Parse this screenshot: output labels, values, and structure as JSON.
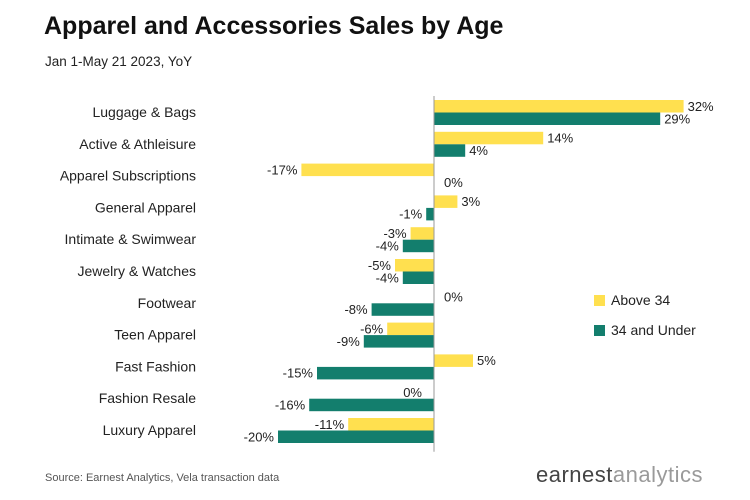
{
  "header": {
    "title": "Apparel and Accessories Sales by Age",
    "subtitle": "Jan 1-May 21 2023, YoY"
  },
  "footer": {
    "source": "Source: Earnest Analytics, Vela transaction data",
    "brand_part1": "earnest",
    "brand_part2": "analytics"
  },
  "colors": {
    "above_34": "#FFE04F",
    "under_34": "#137E6D",
    "axis": "#999999"
  },
  "chart_data": {
    "type": "bar",
    "orientation": "horizontal",
    "title": "Apparel and Accessories Sales by Age",
    "subtitle": "Jan 1-May 21 2023, YoY",
    "value_suffix": "%",
    "categories": [
      "Luggage & Bags",
      "Active & Athleisure",
      "Apparel Subscriptions",
      "General Apparel",
      "Intimate & Swimwear",
      "Jewelry & Watches",
      "Footwear",
      "Teen Apparel",
      "Fast Fashion",
      "Fashion Resale",
      "Luxury Apparel"
    ],
    "series": [
      {
        "name": "Above 34",
        "color": "#FFE04F",
        "values": [
          32,
          14,
          -17,
          3,
          -3,
          -5,
          0,
          -6,
          5,
          0,
          -11
        ]
      },
      {
        "name": "34 and Under",
        "color": "#137E6D",
        "values": [
          29,
          4,
          0,
          -1,
          -4,
          -4,
          -8,
          -9,
          -15,
          -16,
          -20
        ]
      }
    ],
    "xlim": [
      -20,
      32
    ],
    "legend_position": "right",
    "grid": false
  }
}
